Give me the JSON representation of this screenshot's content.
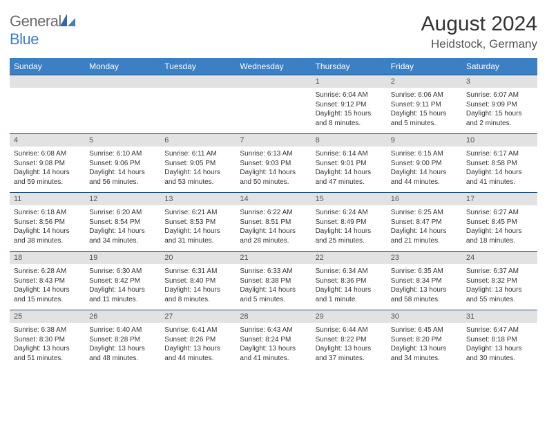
{
  "brand": {
    "general": "General",
    "blue": "Blue"
  },
  "title": "August 2024",
  "location": "Heidstock, Germany",
  "colors": {
    "header_bg": "#3b7fc4",
    "header_text": "#ffffff",
    "daynum_bg": "#e2e2e2",
    "daynum_text": "#555555",
    "cell_text": "#333333",
    "rule": "#1f4e79",
    "logo_gray": "#6a6a6a",
    "logo_blue": "#3b7fc4"
  },
  "days_of_week": [
    "Sunday",
    "Monday",
    "Tuesday",
    "Wednesday",
    "Thursday",
    "Friday",
    "Saturday"
  ],
  "weeks": [
    {
      "nums": [
        "",
        "",
        "",
        "",
        "1",
        "2",
        "3"
      ],
      "cells": [
        null,
        null,
        null,
        null,
        {
          "sunrise": "Sunrise: 6:04 AM",
          "sunset": "Sunset: 9:12 PM",
          "day1": "Daylight: 15 hours",
          "day2": "and 8 minutes."
        },
        {
          "sunrise": "Sunrise: 6:06 AM",
          "sunset": "Sunset: 9:11 PM",
          "day1": "Daylight: 15 hours",
          "day2": "and 5 minutes."
        },
        {
          "sunrise": "Sunrise: 6:07 AM",
          "sunset": "Sunset: 9:09 PM",
          "day1": "Daylight: 15 hours",
          "day2": "and 2 minutes."
        }
      ]
    },
    {
      "nums": [
        "4",
        "5",
        "6",
        "7",
        "8",
        "9",
        "10"
      ],
      "cells": [
        {
          "sunrise": "Sunrise: 6:08 AM",
          "sunset": "Sunset: 9:08 PM",
          "day1": "Daylight: 14 hours",
          "day2": "and 59 minutes."
        },
        {
          "sunrise": "Sunrise: 6:10 AM",
          "sunset": "Sunset: 9:06 PM",
          "day1": "Daylight: 14 hours",
          "day2": "and 56 minutes."
        },
        {
          "sunrise": "Sunrise: 6:11 AM",
          "sunset": "Sunset: 9:05 PM",
          "day1": "Daylight: 14 hours",
          "day2": "and 53 minutes."
        },
        {
          "sunrise": "Sunrise: 6:13 AM",
          "sunset": "Sunset: 9:03 PM",
          "day1": "Daylight: 14 hours",
          "day2": "and 50 minutes."
        },
        {
          "sunrise": "Sunrise: 6:14 AM",
          "sunset": "Sunset: 9:01 PM",
          "day1": "Daylight: 14 hours",
          "day2": "and 47 minutes."
        },
        {
          "sunrise": "Sunrise: 6:15 AM",
          "sunset": "Sunset: 9:00 PM",
          "day1": "Daylight: 14 hours",
          "day2": "and 44 minutes."
        },
        {
          "sunrise": "Sunrise: 6:17 AM",
          "sunset": "Sunset: 8:58 PM",
          "day1": "Daylight: 14 hours",
          "day2": "and 41 minutes."
        }
      ]
    },
    {
      "nums": [
        "11",
        "12",
        "13",
        "14",
        "15",
        "16",
        "17"
      ],
      "cells": [
        {
          "sunrise": "Sunrise: 6:18 AM",
          "sunset": "Sunset: 8:56 PM",
          "day1": "Daylight: 14 hours",
          "day2": "and 38 minutes."
        },
        {
          "sunrise": "Sunrise: 6:20 AM",
          "sunset": "Sunset: 8:54 PM",
          "day1": "Daylight: 14 hours",
          "day2": "and 34 minutes."
        },
        {
          "sunrise": "Sunrise: 6:21 AM",
          "sunset": "Sunset: 8:53 PM",
          "day1": "Daylight: 14 hours",
          "day2": "and 31 minutes."
        },
        {
          "sunrise": "Sunrise: 6:22 AM",
          "sunset": "Sunset: 8:51 PM",
          "day1": "Daylight: 14 hours",
          "day2": "and 28 minutes."
        },
        {
          "sunrise": "Sunrise: 6:24 AM",
          "sunset": "Sunset: 8:49 PM",
          "day1": "Daylight: 14 hours",
          "day2": "and 25 minutes."
        },
        {
          "sunrise": "Sunrise: 6:25 AM",
          "sunset": "Sunset: 8:47 PM",
          "day1": "Daylight: 14 hours",
          "day2": "and 21 minutes."
        },
        {
          "sunrise": "Sunrise: 6:27 AM",
          "sunset": "Sunset: 8:45 PM",
          "day1": "Daylight: 14 hours",
          "day2": "and 18 minutes."
        }
      ]
    },
    {
      "nums": [
        "18",
        "19",
        "20",
        "21",
        "22",
        "23",
        "24"
      ],
      "cells": [
        {
          "sunrise": "Sunrise: 6:28 AM",
          "sunset": "Sunset: 8:43 PM",
          "day1": "Daylight: 14 hours",
          "day2": "and 15 minutes."
        },
        {
          "sunrise": "Sunrise: 6:30 AM",
          "sunset": "Sunset: 8:42 PM",
          "day1": "Daylight: 14 hours",
          "day2": "and 11 minutes."
        },
        {
          "sunrise": "Sunrise: 6:31 AM",
          "sunset": "Sunset: 8:40 PM",
          "day1": "Daylight: 14 hours",
          "day2": "and 8 minutes."
        },
        {
          "sunrise": "Sunrise: 6:33 AM",
          "sunset": "Sunset: 8:38 PM",
          "day1": "Daylight: 14 hours",
          "day2": "and 5 minutes."
        },
        {
          "sunrise": "Sunrise: 6:34 AM",
          "sunset": "Sunset: 8:36 PM",
          "day1": "Daylight: 14 hours",
          "day2": "and 1 minute."
        },
        {
          "sunrise": "Sunrise: 6:35 AM",
          "sunset": "Sunset: 8:34 PM",
          "day1": "Daylight: 13 hours",
          "day2": "and 58 minutes."
        },
        {
          "sunrise": "Sunrise: 6:37 AM",
          "sunset": "Sunset: 8:32 PM",
          "day1": "Daylight: 13 hours",
          "day2": "and 55 minutes."
        }
      ]
    },
    {
      "nums": [
        "25",
        "26",
        "27",
        "28",
        "29",
        "30",
        "31"
      ],
      "cells": [
        {
          "sunrise": "Sunrise: 6:38 AM",
          "sunset": "Sunset: 8:30 PM",
          "day1": "Daylight: 13 hours",
          "day2": "and 51 minutes."
        },
        {
          "sunrise": "Sunrise: 6:40 AM",
          "sunset": "Sunset: 8:28 PM",
          "day1": "Daylight: 13 hours",
          "day2": "and 48 minutes."
        },
        {
          "sunrise": "Sunrise: 6:41 AM",
          "sunset": "Sunset: 8:26 PM",
          "day1": "Daylight: 13 hours",
          "day2": "and 44 minutes."
        },
        {
          "sunrise": "Sunrise: 6:43 AM",
          "sunset": "Sunset: 8:24 PM",
          "day1": "Daylight: 13 hours",
          "day2": "and 41 minutes."
        },
        {
          "sunrise": "Sunrise: 6:44 AM",
          "sunset": "Sunset: 8:22 PM",
          "day1": "Daylight: 13 hours",
          "day2": "and 37 minutes."
        },
        {
          "sunrise": "Sunrise: 6:45 AM",
          "sunset": "Sunset: 8:20 PM",
          "day1": "Daylight: 13 hours",
          "day2": "and 34 minutes."
        },
        {
          "sunrise": "Sunrise: 6:47 AM",
          "sunset": "Sunset: 8:18 PM",
          "day1": "Daylight: 13 hours",
          "day2": "and 30 minutes."
        }
      ]
    }
  ]
}
